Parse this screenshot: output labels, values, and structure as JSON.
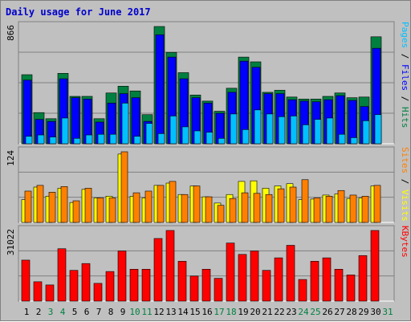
{
  "title": "Daily usage for June 2017",
  "colors": {
    "background": "#c0c0c0",
    "plot_bg": "#c0c0c0",
    "hits": "#00c0ff",
    "files": "#0000ff",
    "pages": "#00c0ff",
    "hits_back": "#008040",
    "sites": "#ff8000",
    "visits": "#ffff00",
    "kbytes": "#ff0000",
    "weekday_label": "#000000",
    "weekend_label": "#008040"
  },
  "chart_data": [
    {
      "type": "bar",
      "panel": "top",
      "max_label": "866",
      "ylim": [
        0,
        866
      ],
      "categories": [
        "1",
        "2",
        "3",
        "4",
        "5",
        "6",
        "7",
        "8",
        "9",
        "10",
        "11",
        "12",
        "13",
        "14",
        "15",
        "16",
        "17",
        "18",
        "19",
        "20",
        "21",
        "22",
        "23",
        "24",
        "25",
        "26",
        "27",
        "28",
        "29",
        "30",
        "31"
      ],
      "weekend_days": [
        "3",
        "4",
        "10",
        "11",
        "17",
        "18",
        "24",
        "25",
        "31"
      ],
      "right_label": [
        {
          "text": "Pages",
          "color": "#00c0ff"
        },
        {
          "text": " / ",
          "color": "#000000"
        },
        {
          "text": "Files",
          "color": "#0000ff"
        },
        {
          "text": " / ",
          "color": "#000000"
        },
        {
          "text": "Hits",
          "color": "#008040"
        }
      ],
      "series": [
        {
          "name": "Hits",
          "values": [
            510,
            230,
            185,
            520,
            350,
            350,
            185,
            375,
            425,
            390,
            215,
            866,
            675,
            525,
            360,
            315,
            240,
            410,
            640,
            605,
            380,
            395,
            345,
            330,
            330,
            350,
            375,
            340,
            345,
            790,
            0
          ]
        },
        {
          "name": "Files",
          "values": [
            470,
            180,
            165,
            480,
            340,
            330,
            160,
            300,
            370,
            340,
            165,
            805,
            640,
            480,
            340,
            300,
            225,
            380,
            610,
            565,
            370,
            370,
            325,
            315,
            310,
            325,
            355,
            320,
            275,
            705,
            0
          ]
        },
        {
          "name": "Pages",
          "values": [
            55,
            65,
            50,
            190,
            40,
            65,
            70,
            70,
            300,
            55,
            150,
            75,
            205,
            125,
            95,
            85,
            40,
            220,
            105,
            250,
            220,
            200,
            205,
            140,
            180,
            190,
            70,
            45,
            170,
            215,
            0
          ]
        }
      ]
    },
    {
      "type": "bar",
      "panel": "middle",
      "max_label": "124",
      "ylim": [
        0,
        124
      ],
      "categories": [
        "1",
        "2",
        "3",
        "4",
        "5",
        "6",
        "7",
        "8",
        "9",
        "10",
        "11",
        "12",
        "13",
        "14",
        "15",
        "16",
        "17",
        "18",
        "19",
        "20",
        "21",
        "22",
        "23",
        "24",
        "25",
        "26",
        "27",
        "28",
        "29",
        "30",
        "31"
      ],
      "right_label": [
        {
          "text": "Sites",
          "color": "#ff8000"
        },
        {
          "text": " / ",
          "color": "#000000"
        },
        {
          "text": "Visits",
          "color": "#ffff00"
        }
      ],
      "series": [
        {
          "name": "Visits",
          "values": [
            40,
            62,
            46,
            60,
            35,
            58,
            43,
            46,
            120,
            46,
            43,
            65,
            69,
            49,
            64,
            45,
            34,
            49,
            72,
            73,
            60,
            64,
            68,
            40,
            41,
            48,
            50,
            42,
            43,
            64,
            0
          ]
        },
        {
          "name": "Sites",
          "values": [
            55,
            65,
            53,
            63,
            38,
            60,
            43,
            43,
            124,
            52,
            55,
            65,
            72,
            49,
            64,
            45,
            30,
            42,
            52,
            51,
            49,
            59,
            62,
            75,
            43,
            46,
            56,
            48,
            46,
            65,
            0
          ]
        }
      ]
    },
    {
      "type": "bar",
      "panel": "bottom",
      "max_label": "31022",
      "ylim": [
        0,
        31022
      ],
      "categories": [
        "1",
        "2",
        "3",
        "4",
        "5",
        "6",
        "7",
        "8",
        "9",
        "10",
        "11",
        "12",
        "13",
        "14",
        "15",
        "16",
        "17",
        "18",
        "19",
        "20",
        "21",
        "22",
        "23",
        "24",
        "25",
        "26",
        "27",
        "28",
        "29",
        "30",
        "31"
      ],
      "right_label": [
        {
          "text": "KBytes",
          "color": "#ff0000"
        }
      ],
      "series": [
        {
          "name": "KBytes",
          "values": [
            18000,
            8500,
            7100,
            23000,
            13500,
            16500,
            7800,
            13000,
            22000,
            14000,
            14000,
            27500,
            31022,
            17500,
            11000,
            14000,
            10000,
            25500,
            20500,
            22000,
            13500,
            19000,
            24500,
            9500,
            17500,
            19000,
            14000,
            11500,
            20000,
            31022,
            0
          ]
        }
      ]
    }
  ]
}
